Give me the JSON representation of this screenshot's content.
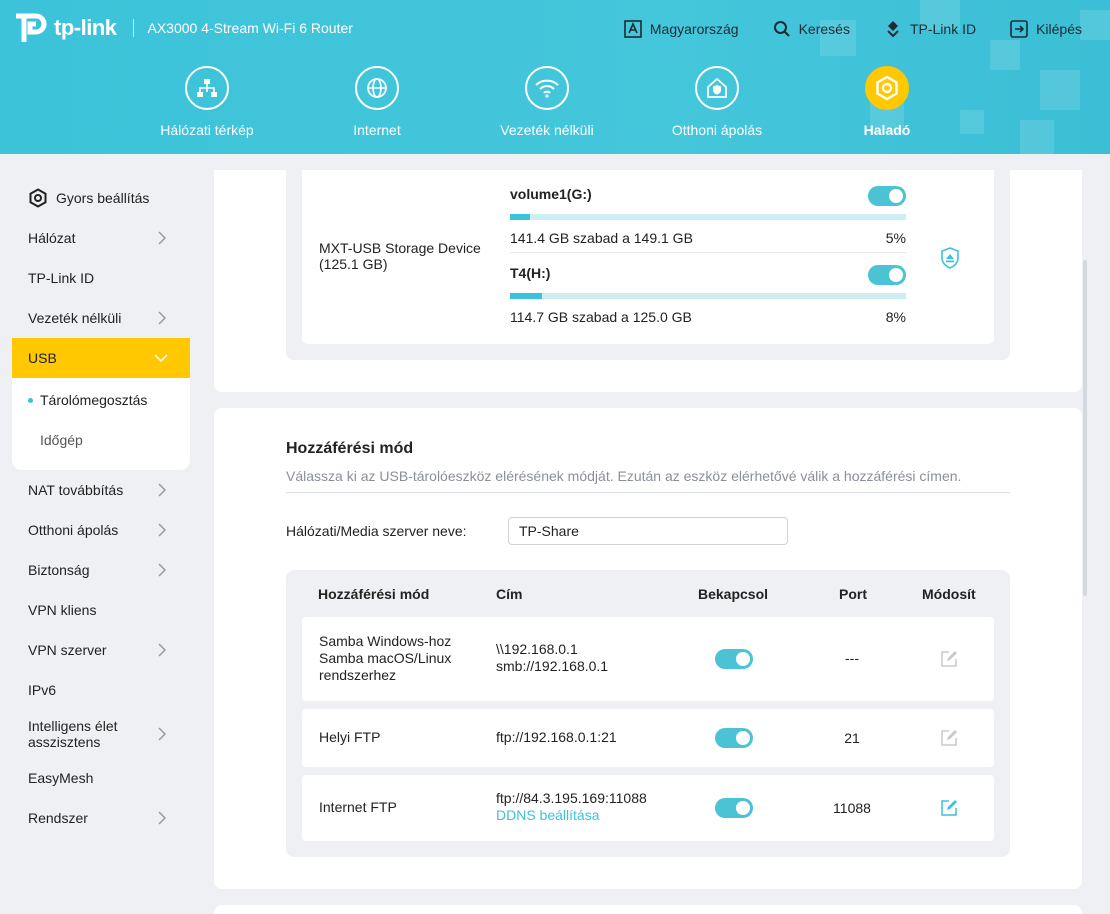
{
  "brand": {
    "logo_text": "tp-link",
    "model": "AX3000 4-Stream Wi-Fi 6 Router"
  },
  "topnav": [
    {
      "label": "Magyarország",
      "icon": "language-icon"
    },
    {
      "label": "Keresés",
      "icon": "search-icon"
    },
    {
      "label": "TP-Link ID",
      "icon": "tplink-id-icon"
    },
    {
      "label": "Kilépés",
      "icon": "logout-icon"
    }
  ],
  "mainnav": [
    {
      "label": "Hálózati térkép",
      "icon": "network-map-icon"
    },
    {
      "label": "Internet",
      "icon": "globe-icon"
    },
    {
      "label": "Vezeték nélküli",
      "icon": "wifi-icon"
    },
    {
      "label": "Otthoni ápolás",
      "icon": "home-care-icon"
    },
    {
      "label": "Haladó",
      "icon": "advanced-gear-icon",
      "active": true
    }
  ],
  "sidebar": {
    "quick_setup": "Gyors beállítás",
    "items": [
      {
        "label": "Hálózat"
      },
      {
        "label": "TP-Link ID"
      },
      {
        "label": "Vezeték nélküli"
      },
      {
        "label": "USB"
      },
      {
        "label": "NAT továbbítás"
      },
      {
        "label": "Otthoni ápolás"
      },
      {
        "label": "Biztonság"
      },
      {
        "label": "VPN kliens"
      },
      {
        "label": "VPN szerver"
      },
      {
        "label": "IPv6"
      },
      {
        "label": "Intelligens élet asszisztens"
      },
      {
        "label": "EasyMesh"
      },
      {
        "label": "Rendszer"
      }
    ],
    "usb_sub": [
      {
        "label": "Tárolómegosztás"
      },
      {
        "label": "Időgép"
      }
    ]
  },
  "storage": {
    "device": "MXT-USB Storage Device (125.1 GB)",
    "volumes": [
      {
        "name": "volume1(G:)",
        "info": "141.4 GB szabad a 149.1 GB",
        "percent": "5%",
        "used_fraction": 0.05
      },
      {
        "name": "T4(H:)",
        "info": "114.7 GB szabad a 125.0 GB",
        "percent": "8%",
        "used_fraction": 0.08
      }
    ]
  },
  "access": {
    "title": "Hozzáférési mód",
    "description": "Válassza ki az USB-tárolóeszköz elérésének módját. Ezután az eszköz elérhetővé válik a hozzáférési címen.",
    "server_label": "Hálózati/Media szerver neve:",
    "server_value": "TP-Share",
    "headers": {
      "mode": "Hozzáférési mód",
      "address": "Cím",
      "enable": "Bekapcsol",
      "port": "Port",
      "modify": "Módosít"
    },
    "rows": [
      {
        "mode": "Samba Windows-hoz Samba macOS/Linux rendszerhez",
        "address1": "\\\\192.168.0.1",
        "address2": "smb://192.168.0.1",
        "port": "---"
      },
      {
        "mode": "Helyi FTP",
        "address1": "ftp://192.168.0.1:21",
        "address2": "",
        "port": "21"
      },
      {
        "mode": "Internet FTP",
        "address1": "ftp://84.3.195.169:11088",
        "link": "DDNS beállítása",
        "port": "11088"
      }
    ]
  },
  "colors": {
    "accent": "#3cc3d9",
    "active_nav": "#ffc800",
    "toggle_on": "#4cc3d5"
  }
}
